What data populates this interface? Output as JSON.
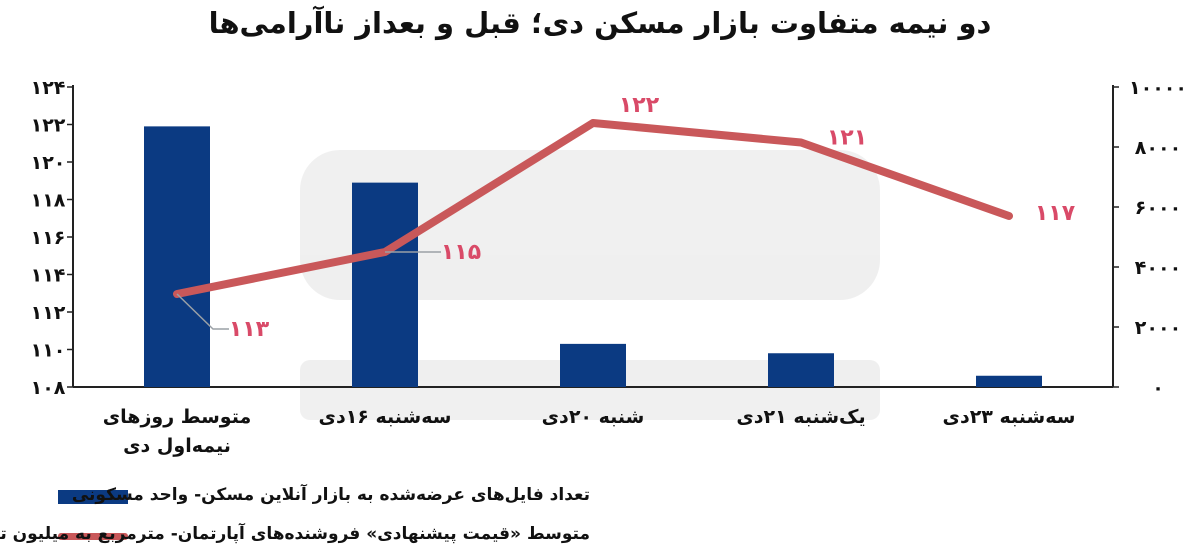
{
  "chart_data": {
    "type": "bar",
    "title": "دو نیمه متفاوت بازار مسکن دی؛ قبل و بعداز ناآرامی‌ها",
    "categories": [
      [
        "متوسط روزهای",
        "نیمه‌اول دی"
      ],
      [
        "سه‌شنبه ۱۶دی"
      ],
      [
        "شنبه ۲۰دی"
      ],
      [
        "یک‌شنبه ۲۱دی"
      ],
      [
        "سه‌شنبه ۲۳دی"
      ]
    ],
    "series": [
      {
        "name": "تعداد فایل‌های عرضه‌شده به بازار آنلاین مسکن- واحد مسکونی",
        "type": "bar",
        "axis": "left",
        "color": "#0b3a82",
        "values": [
          121.9,
          118.9,
          110.3,
          109.8,
          108.6
        ]
      },
      {
        "name": "متوسط «قیمت پیشنهادی» فروشنده‌های آپارتمان- مترمربع به میلیون تومان",
        "type": "line",
        "axis": "right",
        "color": "#c9585a",
        "values": [
          3100,
          4500,
          8800,
          8150,
          5700
        ],
        "labels": [
          "۱۱۳",
          "۱۱۵",
          "۱۲۲",
          "۱۲۱",
          "۱۱۷"
        ]
      }
    ],
    "y_left": {
      "min": 108,
      "max": 124,
      "ticks": [
        108,
        110,
        112,
        114,
        116,
        118,
        120,
        122,
        124
      ],
      "tick_labels": [
        "۱۰۸",
        "۱۱۰",
        "۱۱۲",
        "۱۱۴",
        "۱۱۶",
        "۱۱۸",
        "۱۲۰",
        "۱۲۲",
        "۱۲۴"
      ]
    },
    "y_right": {
      "min": 0,
      "max": 10000,
      "ticks": [
        0,
        2000,
        4000,
        6000,
        8000,
        10000
      ],
      "tick_labels": [
        "۰",
        "۲۰۰۰",
        "۴۰۰۰",
        "۶۰۰۰",
        "۸۰۰۰",
        "۱۰۰۰۰"
      ]
    },
    "grid": false,
    "legend": "bottom-left"
  }
}
